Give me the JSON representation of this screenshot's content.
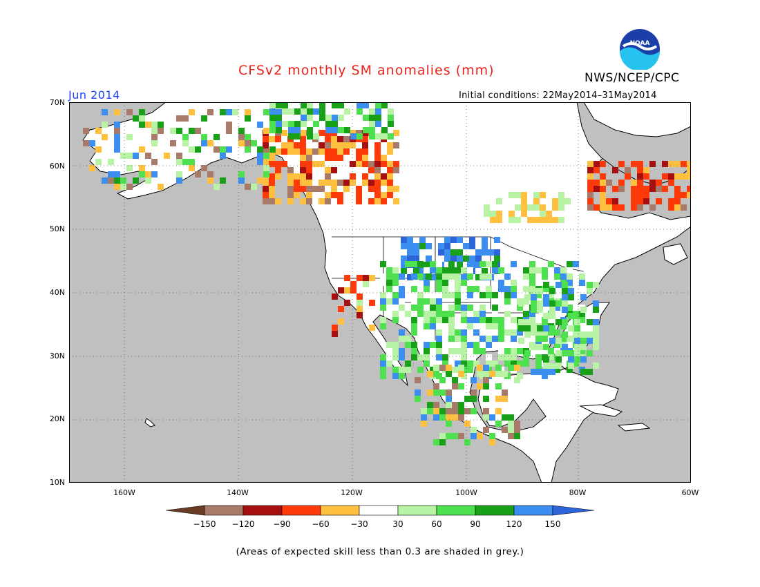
{
  "header": {
    "title": "CFSv2 monthly SM anomalies (mm)",
    "agency": "NWS/NCEP/CPC",
    "logo_text": "NOAA",
    "month": "Jun 2014",
    "initial_conditions": "Initial conditions: 22May2014–31May2014"
  },
  "map": {
    "lat_labels": [
      "70N",
      "60N",
      "50N",
      "40N",
      "30N",
      "20N",
      "10N"
    ],
    "lon_labels": [
      "160W",
      "140W",
      "120W",
      "100W",
      "80W",
      "60W"
    ],
    "ocean_color": "#c0c0c0",
    "land_color": "#ffffff"
  },
  "legend": {
    "ticks": [
      "−150",
      "−120",
      "−90",
      "−60",
      "−30",
      "30",
      "60",
      "90",
      "120",
      "150"
    ],
    "colors": [
      "#6b3a24",
      "#a87a6a",
      "#a50f0f",
      "#ff3a0a",
      "#ffc040",
      "#ffffff",
      "#b7f2a5",
      "#4fe04f",
      "#18a018",
      "#3c8ff0",
      "#2d64d8"
    ]
  },
  "footer": {
    "note": "(Areas of expected skill less than 0.3 are shaded in grey.)"
  }
}
